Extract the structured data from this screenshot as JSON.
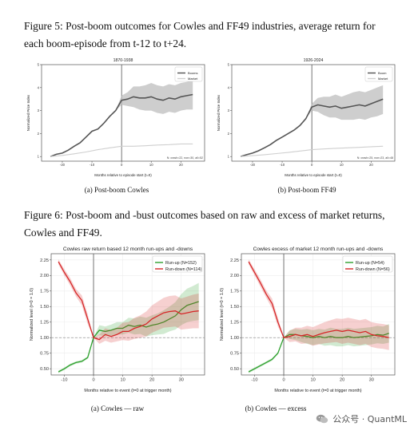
{
  "fig5": {
    "caption": "Figure 5: Post-boom outcomes for Cowles and FF49 industries, average return for each boom-episode from t-12 to t+24.",
    "subcaption_a": "(a) Post-boom Cowles",
    "subcaption_b": "(b) Post-boom FF49"
  },
  "fig6": {
    "caption": "Figure 6: Post-boom and -bust outcomes based on raw and excess of market returns, Cowles and FF49.",
    "subcaption_a": "(a) Cowles — raw",
    "subcaption_b": "(b) Cowles — excess"
  },
  "watermark": {
    "text": "公众号 · QuantML",
    "icon": "wechat-icon"
  },
  "chart_data": [
    {
      "type": "line",
      "title": "1870-1938",
      "xlabel": "Months relative to episode start (t=0)",
      "ylabel": "Normalized Price Index",
      "xlim": [
        -27,
        28
      ],
      "ylim": [
        0.8,
        5.0
      ],
      "xticks": [
        -20,
        -10,
        0,
        10,
        20
      ],
      "yticks": [
        1,
        2,
        3,
        4,
        5
      ],
      "legend": [
        "Booms",
        "Market"
      ],
      "legend_loc": "top-right",
      "note": "N: crash=22, non=30, all=52",
      "colors": {
        "booms": "#555555",
        "band": "#bdbdbd",
        "market": "#cfcfcf"
      },
      "series": [
        {
          "name": "Booms",
          "x": [
            -24,
            -22,
            -20,
            -18,
            -16,
            -14,
            -12,
            -10,
            -8,
            -6,
            -4,
            -2,
            0,
            2,
            4,
            6,
            8,
            10,
            12,
            14,
            16,
            18,
            20,
            22,
            24
          ],
          "values": [
            1.0,
            1.1,
            1.15,
            1.28,
            1.45,
            1.6,
            1.85,
            2.1,
            2.2,
            2.45,
            2.75,
            3.0,
            3.45,
            3.5,
            3.6,
            3.55,
            3.55,
            3.6,
            3.5,
            3.45,
            3.55,
            3.5,
            3.6,
            3.65,
            3.7
          ],
          "lower": [
            1.0,
            1.1,
            1.15,
            1.28,
            1.45,
            1.6,
            1.85,
            2.1,
            2.2,
            2.45,
            2.75,
            3.0,
            3.25,
            3.2,
            3.15,
            3.05,
            3.0,
            3.0,
            2.9,
            2.85,
            2.95,
            2.9,
            3.0,
            3.05,
            3.05
          ],
          "upper": [
            1.0,
            1.1,
            1.15,
            1.28,
            1.45,
            1.6,
            1.85,
            2.1,
            2.2,
            2.45,
            2.75,
            3.0,
            3.65,
            3.8,
            4.05,
            4.05,
            4.1,
            4.2,
            4.1,
            4.05,
            4.15,
            4.1,
            4.2,
            4.25,
            4.35
          ]
        },
        {
          "name": "Market",
          "x": [
            -24,
            -20,
            -16,
            -12,
            -8,
            -4,
            0,
            4,
            8,
            12,
            16,
            20,
            24
          ],
          "values": [
            1.0,
            1.05,
            1.12,
            1.2,
            1.3,
            1.38,
            1.45,
            1.45,
            1.47,
            1.5,
            1.52,
            1.55,
            1.55
          ]
        }
      ]
    },
    {
      "type": "line",
      "title": "1926-2024",
      "xlabel": "Months relative to episode start (t=0)",
      "ylabel": "Normalized Price Index",
      "xlim": [
        -27,
        28
      ],
      "ylim": [
        0.8,
        5.0
      ],
      "xticks": [
        -20,
        -10,
        0,
        10,
        20
      ],
      "yticks": [
        1,
        2,
        3,
        4,
        5
      ],
      "legend": [
        "Boom",
        "Market"
      ],
      "legend_loc": "top-right",
      "note": "N: crash=25, non=23, all=48",
      "colors": {
        "booms": "#555555",
        "band": "#bdbdbd",
        "market": "#cfcfcf"
      },
      "series": [
        {
          "name": "Boom",
          "x": [
            -24,
            -22,
            -20,
            -18,
            -16,
            -14,
            -12,
            -10,
            -8,
            -6,
            -4,
            -2,
            0,
            2,
            4,
            6,
            8,
            10,
            12,
            14,
            16,
            18,
            20,
            22,
            24
          ],
          "values": [
            1.0,
            1.08,
            1.15,
            1.25,
            1.38,
            1.52,
            1.7,
            1.85,
            2.0,
            2.15,
            2.35,
            2.65,
            3.15,
            3.25,
            3.2,
            3.15,
            3.2,
            3.1,
            3.15,
            3.2,
            3.25,
            3.2,
            3.3,
            3.4,
            3.5
          ],
          "lower": [
            1.0,
            1.08,
            1.15,
            1.25,
            1.38,
            1.52,
            1.7,
            1.85,
            2.0,
            2.15,
            2.35,
            2.65,
            3.0,
            2.95,
            2.8,
            2.7,
            2.7,
            2.6,
            2.6,
            2.6,
            2.65,
            2.6,
            2.7,
            2.75,
            2.85
          ],
          "upper": [
            1.0,
            1.08,
            1.15,
            1.25,
            1.38,
            1.52,
            1.7,
            1.85,
            2.0,
            2.15,
            2.35,
            2.65,
            3.3,
            3.55,
            3.6,
            3.6,
            3.7,
            3.6,
            3.7,
            3.8,
            3.85,
            3.8,
            3.9,
            4.0,
            4.1
          ]
        },
        {
          "name": "Market",
          "x": [
            -24,
            -20,
            -16,
            -12,
            -8,
            -4,
            0,
            4,
            8,
            12,
            16,
            20,
            24
          ],
          "values": [
            1.0,
            1.04,
            1.08,
            1.13,
            1.18,
            1.24,
            1.3,
            1.33,
            1.36,
            1.38,
            1.4,
            1.43,
            1.45
          ]
        }
      ]
    },
    {
      "type": "line",
      "title": "Cowles raw return based 12 month run-ups and -downs",
      "xlabel": "Months relative to event (t=0 at trigger month)",
      "ylabel": "Normalized level (t=0 = 1.0)",
      "xlim": [
        -14.5,
        38
      ],
      "ylim": [
        0.4,
        2.35
      ],
      "xticks": [
        -10,
        0,
        10,
        20,
        30
      ],
      "yticks": [
        0.5,
        0.75,
        1.0,
        1.25,
        1.5,
        1.75,
        2.0,
        2.25
      ],
      "legend": [
        "Run-up (N=152)",
        "Run-down (N=114)"
      ],
      "legend_loc": "top-right",
      "colors": {
        "runup": "#2ca02c",
        "rundown": "#d62728"
      },
      "series": [
        {
          "name": "Run-up (N=152)",
          "x": [
            -12,
            -10,
            -8,
            -6,
            -4,
            -2,
            0,
            2,
            4,
            6,
            8,
            10,
            12,
            14,
            16,
            18,
            20,
            22,
            24,
            26,
            28,
            30,
            32,
            34,
            36
          ],
          "values": [
            0.45,
            0.5,
            0.56,
            0.6,
            0.62,
            0.68,
            1.0,
            1.12,
            1.1,
            1.12,
            1.15,
            1.15,
            1.2,
            1.18,
            1.2,
            1.17,
            1.2,
            1.22,
            1.25,
            1.3,
            1.35,
            1.45,
            1.52,
            1.55,
            1.58
          ],
          "lower": [
            0.43,
            0.48,
            0.54,
            0.58,
            0.6,
            0.66,
            1.0,
            1.04,
            1.02,
            1.03,
            1.05,
            1.05,
            1.08,
            1.05,
            1.06,
            1.02,
            1.04,
            1.05,
            1.06,
            1.1,
            1.13,
            1.2,
            1.25,
            1.27,
            1.28
          ],
          "upper": [
            0.47,
            0.52,
            0.58,
            0.62,
            0.64,
            0.7,
            1.0,
            1.2,
            1.18,
            1.21,
            1.25,
            1.25,
            1.32,
            1.31,
            1.34,
            1.32,
            1.36,
            1.39,
            1.44,
            1.5,
            1.57,
            1.7,
            1.79,
            1.83,
            1.88
          ]
        },
        {
          "name": "Run-down (N=114)",
          "x": [
            -12,
            -10,
            -8,
            -6,
            -4,
            -2,
            0,
            2,
            4,
            6,
            8,
            10,
            12,
            14,
            16,
            18,
            20,
            22,
            24,
            26,
            28,
            30,
            32,
            34,
            36
          ],
          "values": [
            2.22,
            2.05,
            1.9,
            1.72,
            1.6,
            1.3,
            1.0,
            0.97,
            1.05,
            1.02,
            1.05,
            1.1,
            1.1,
            1.15,
            1.18,
            1.22,
            1.3,
            1.35,
            1.4,
            1.42,
            1.43,
            1.38,
            1.4,
            1.42,
            1.43
          ],
          "lower": [
            2.18,
            2.0,
            1.84,
            1.66,
            1.52,
            1.22,
            1.0,
            0.9,
            0.95,
            0.92,
            0.94,
            0.96,
            0.95,
            0.98,
            1.0,
            1.02,
            1.08,
            1.12,
            1.16,
            1.17,
            1.18,
            1.13,
            1.14,
            1.15,
            1.15
          ],
          "upper": [
            2.26,
            2.1,
            1.96,
            1.78,
            1.68,
            1.38,
            1.0,
            1.05,
            1.15,
            1.12,
            1.16,
            1.24,
            1.25,
            1.32,
            1.36,
            1.42,
            1.52,
            1.58,
            1.64,
            1.67,
            1.68,
            1.63,
            1.66,
            1.69,
            1.71
          ]
        }
      ]
    },
    {
      "type": "line",
      "title": "Cowles excess of market 12 month run-ups and -downs",
      "xlabel": "Months relative to event (t=0 at trigger month)",
      "ylabel": "Normalized level (t=0 = 1.0)",
      "xlim": [
        -14.5,
        38
      ],
      "ylim": [
        0.4,
        2.35
      ],
      "xticks": [
        -10,
        0,
        10,
        20,
        30
      ],
      "yticks": [
        0.5,
        0.75,
        1.0,
        1.25,
        1.5,
        1.75,
        2.0,
        2.25
      ],
      "legend": [
        "Run-up (N=54)",
        "Run-down (N=56)"
      ],
      "legend_loc": "top-right",
      "colors": {
        "runup": "#2ca02c",
        "rundown": "#d62728"
      },
      "series": [
        {
          "name": "Run-up (N=54)",
          "x": [
            -12,
            -10,
            -8,
            -6,
            -4,
            -2,
            0,
            2,
            4,
            6,
            8,
            10,
            12,
            14,
            16,
            18,
            20,
            22,
            24,
            26,
            28,
            30,
            32,
            34,
            36
          ],
          "values": [
            0.45,
            0.5,
            0.55,
            0.6,
            0.65,
            0.75,
            1.0,
            1.05,
            1.05,
            1.03,
            1.02,
            1.0,
            1.02,
            1.0,
            1.02,
            1.0,
            1.0,
            1.02,
            1.0,
            1.01,
            1.02,
            1.03,
            1.05,
            1.04,
            1.07
          ],
          "lower": [
            0.43,
            0.48,
            0.53,
            0.58,
            0.63,
            0.73,
            1.0,
            0.98,
            0.96,
            0.93,
            0.9,
            0.88,
            0.9,
            0.87,
            0.88,
            0.86,
            0.86,
            0.88,
            0.86,
            0.87,
            0.88,
            0.89,
            0.91,
            0.9,
            0.92
          ],
          "upper": [
            0.47,
            0.52,
            0.57,
            0.62,
            0.67,
            0.77,
            1.0,
            1.12,
            1.14,
            1.13,
            1.14,
            1.12,
            1.14,
            1.13,
            1.16,
            1.14,
            1.14,
            1.16,
            1.14,
            1.15,
            1.16,
            1.17,
            1.19,
            1.18,
            1.22
          ]
        },
        {
          "name": "Run-down (N=56)",
          "x": [
            -12,
            -10,
            -8,
            -6,
            -4,
            -2,
            0,
            2,
            4,
            6,
            8,
            10,
            12,
            14,
            16,
            18,
            20,
            22,
            24,
            26,
            28,
            30,
            32,
            34,
            36
          ],
          "values": [
            2.22,
            2.05,
            1.88,
            1.7,
            1.55,
            1.25,
            1.0,
            1.02,
            1.05,
            1.03,
            1.05,
            1.02,
            1.05,
            1.08,
            1.1,
            1.12,
            1.1,
            1.12,
            1.1,
            1.08,
            1.1,
            1.05,
            1.03,
            1.02,
            1.0
          ],
          "lower": [
            2.18,
            2.0,
            1.82,
            1.64,
            1.47,
            1.18,
            1.0,
            0.93,
            0.94,
            0.9,
            0.91,
            0.87,
            0.89,
            0.91,
            0.92,
            0.93,
            0.9,
            0.92,
            0.9,
            0.88,
            0.9,
            0.85,
            0.83,
            0.82,
            0.8
          ],
          "upper": [
            2.26,
            2.1,
            1.94,
            1.76,
            1.63,
            1.32,
            1.0,
            1.11,
            1.16,
            1.16,
            1.19,
            1.17,
            1.21,
            1.25,
            1.28,
            1.31,
            1.3,
            1.32,
            1.3,
            1.28,
            1.3,
            1.25,
            1.23,
            1.22,
            1.2
          ]
        }
      ]
    }
  ]
}
